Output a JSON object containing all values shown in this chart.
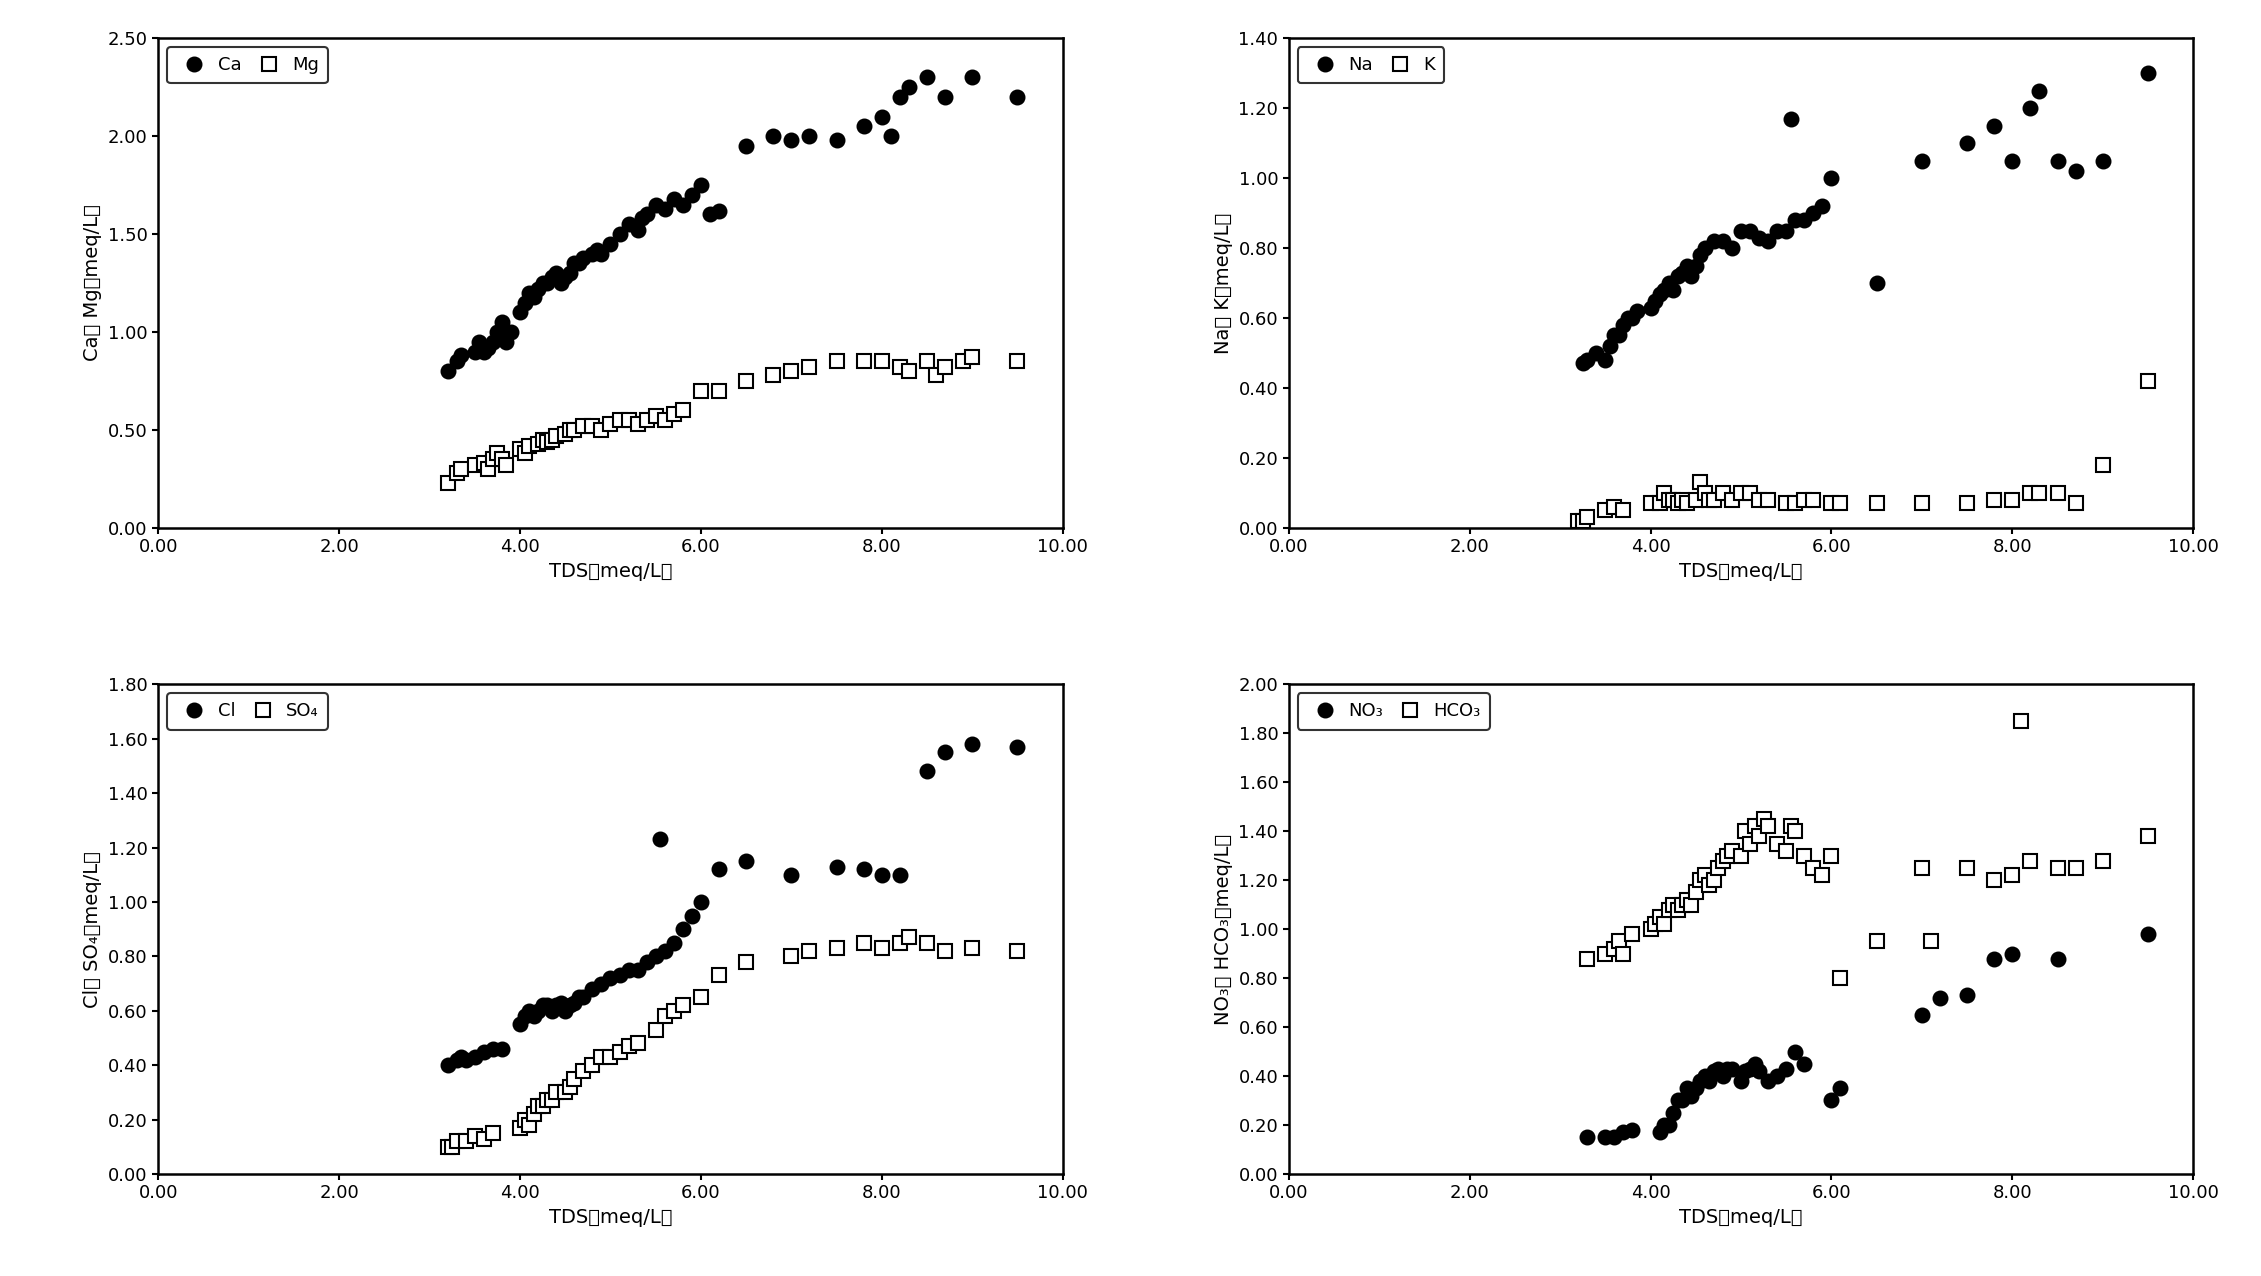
{
  "ca_tds": [
    3.2,
    3.3,
    3.35,
    3.5,
    3.55,
    3.6,
    3.65,
    3.7,
    3.75,
    3.8,
    3.85,
    3.9,
    4.0,
    4.05,
    4.1,
    4.15,
    4.2,
    4.25,
    4.3,
    4.35,
    4.4,
    4.45,
    4.5,
    4.55,
    4.6,
    4.65,
    4.7,
    4.8,
    4.85,
    4.9,
    5.0,
    5.1,
    5.2,
    5.3,
    5.35,
    5.4,
    5.5,
    5.6,
    5.7,
    5.8,
    5.9,
    6.0,
    6.1,
    6.2,
    6.5,
    6.8,
    7.0,
    7.2,
    7.5,
    7.8,
    8.0,
    8.1,
    8.2,
    8.3,
    8.5,
    8.7,
    9.0,
    9.5
  ],
  "ca_val": [
    0.8,
    0.85,
    0.88,
    0.9,
    0.95,
    0.9,
    0.92,
    0.95,
    1.0,
    1.05,
    0.95,
    1.0,
    1.1,
    1.15,
    1.2,
    1.18,
    1.22,
    1.25,
    1.25,
    1.28,
    1.3,
    1.25,
    1.28,
    1.3,
    1.35,
    1.35,
    1.38,
    1.4,
    1.42,
    1.4,
    1.45,
    1.5,
    1.55,
    1.52,
    1.58,
    1.6,
    1.65,
    1.63,
    1.68,
    1.65,
    1.7,
    1.75,
    1.6,
    1.62,
    1.95,
    2.0,
    1.98,
    2.0,
    1.98,
    2.05,
    2.1,
    2.0,
    2.2,
    2.25,
    2.3,
    2.2,
    2.3,
    2.2
  ],
  "mg_tds": [
    3.2,
    3.3,
    3.35,
    3.5,
    3.6,
    3.65,
    3.7,
    3.75,
    3.8,
    3.85,
    4.0,
    4.05,
    4.1,
    4.2,
    4.25,
    4.3,
    4.35,
    4.4,
    4.5,
    4.55,
    4.6,
    4.7,
    4.8,
    4.9,
    5.0,
    5.1,
    5.2,
    5.3,
    5.4,
    5.5,
    5.6,
    5.7,
    5.8,
    6.0,
    6.2,
    6.5,
    6.8,
    7.0,
    7.2,
    7.5,
    7.8,
    8.0,
    8.2,
    8.3,
    8.5,
    8.6,
    8.7,
    8.9,
    9.0,
    9.5
  ],
  "mg_val": [
    0.23,
    0.28,
    0.3,
    0.32,
    0.33,
    0.3,
    0.35,
    0.38,
    0.35,
    0.32,
    0.4,
    0.38,
    0.42,
    0.43,
    0.45,
    0.44,
    0.45,
    0.47,
    0.48,
    0.5,
    0.5,
    0.52,
    0.52,
    0.5,
    0.53,
    0.55,
    0.55,
    0.53,
    0.55,
    0.57,
    0.55,
    0.58,
    0.6,
    0.7,
    0.7,
    0.75,
    0.78,
    0.8,
    0.82,
    0.85,
    0.85,
    0.85,
    0.82,
    0.8,
    0.85,
    0.78,
    0.82,
    0.85,
    0.87,
    0.85
  ],
  "na_tds": [
    3.25,
    3.3,
    3.4,
    3.5,
    3.55,
    3.6,
    3.65,
    3.7,
    3.75,
    3.8,
    3.85,
    4.0,
    4.05,
    4.1,
    4.15,
    4.2,
    4.25,
    4.3,
    4.35,
    4.4,
    4.45,
    4.5,
    4.55,
    4.6,
    4.7,
    4.8,
    4.9,
    5.0,
    5.1,
    5.2,
    5.3,
    5.4,
    5.5,
    5.55,
    5.6,
    5.7,
    5.8,
    5.9,
    6.0,
    6.5,
    7.0,
    7.5,
    7.8,
    8.0,
    8.2,
    8.3,
    8.5,
    8.7,
    9.0,
    9.5
  ],
  "na_val": [
    0.47,
    0.48,
    0.5,
    0.48,
    0.52,
    0.55,
    0.55,
    0.58,
    0.6,
    0.6,
    0.62,
    0.63,
    0.65,
    0.67,
    0.68,
    0.7,
    0.68,
    0.72,
    0.73,
    0.75,
    0.72,
    0.75,
    0.78,
    0.8,
    0.82,
    0.82,
    0.8,
    0.85,
    0.85,
    0.83,
    0.82,
    0.85,
    0.85,
    1.17,
    0.88,
    0.88,
    0.9,
    0.92,
    1.0,
    0.7,
    1.05,
    1.1,
    1.15,
    1.05,
    1.2,
    1.25,
    1.05,
    1.02,
    1.05,
    1.3
  ],
  "k_tds": [
    3.2,
    3.25,
    3.3,
    3.5,
    3.6,
    3.7,
    4.0,
    4.1,
    4.15,
    4.2,
    4.25,
    4.3,
    4.35,
    4.4,
    4.5,
    4.55,
    4.6,
    4.65,
    4.7,
    4.8,
    4.9,
    5.0,
    5.1,
    5.2,
    5.3,
    5.5,
    5.6,
    5.7,
    5.8,
    6.0,
    6.1,
    6.5,
    7.0,
    7.5,
    7.8,
    8.0,
    8.2,
    8.3,
    8.5,
    8.7,
    9.0,
    9.5
  ],
  "k_val": [
    0.02,
    0.02,
    0.03,
    0.05,
    0.06,
    0.05,
    0.07,
    0.07,
    0.1,
    0.08,
    0.08,
    0.07,
    0.08,
    0.07,
    0.08,
    0.13,
    0.1,
    0.08,
    0.08,
    0.1,
    0.08,
    0.1,
    0.1,
    0.08,
    0.08,
    0.07,
    0.07,
    0.08,
    0.08,
    0.07,
    0.07,
    0.07,
    0.07,
    0.07,
    0.08,
    0.08,
    0.1,
    0.1,
    0.1,
    0.07,
    0.18,
    0.42
  ],
  "cl_tds": [
    3.2,
    3.3,
    3.35,
    3.4,
    3.5,
    3.6,
    3.7,
    3.8,
    4.0,
    4.05,
    4.1,
    4.15,
    4.2,
    4.25,
    4.3,
    4.35,
    4.4,
    4.45,
    4.5,
    4.55,
    4.6,
    4.65,
    4.7,
    4.8,
    4.9,
    5.0,
    5.1,
    5.2,
    5.3,
    5.4,
    5.5,
    5.55,
    5.6,
    5.7,
    5.8,
    5.9,
    6.0,
    6.2,
    6.5,
    7.0,
    7.5,
    7.8,
    8.0,
    8.2,
    8.5,
    8.7,
    9.0,
    9.5
  ],
  "cl_val": [
    0.4,
    0.42,
    0.43,
    0.42,
    0.43,
    0.45,
    0.46,
    0.46,
    0.55,
    0.58,
    0.6,
    0.58,
    0.6,
    0.62,
    0.62,
    0.6,
    0.62,
    0.63,
    0.6,
    0.62,
    0.63,
    0.65,
    0.65,
    0.68,
    0.7,
    0.72,
    0.73,
    0.75,
    0.75,
    0.78,
    0.8,
    1.23,
    0.82,
    0.85,
    0.9,
    0.95,
    1.0,
    1.12,
    1.15,
    1.1,
    1.13,
    1.12,
    1.1,
    1.1,
    1.48,
    1.55,
    1.58,
    1.57
  ],
  "so4_tds": [
    3.2,
    3.25,
    3.3,
    3.4,
    3.5,
    3.6,
    3.7,
    4.0,
    4.05,
    4.1,
    4.15,
    4.2,
    4.25,
    4.3,
    4.35,
    4.4,
    4.5,
    4.55,
    4.6,
    4.7,
    4.8,
    4.9,
    5.0,
    5.1,
    5.2,
    5.3,
    5.5,
    5.6,
    5.7,
    5.8,
    6.0,
    6.2,
    6.5,
    7.0,
    7.2,
    7.5,
    7.8,
    8.0,
    8.2,
    8.3,
    8.5,
    8.7,
    9.0,
    9.5
  ],
  "so4_val": [
    0.1,
    0.1,
    0.12,
    0.12,
    0.14,
    0.13,
    0.15,
    0.17,
    0.2,
    0.18,
    0.22,
    0.25,
    0.25,
    0.27,
    0.27,
    0.3,
    0.3,
    0.32,
    0.35,
    0.38,
    0.4,
    0.43,
    0.43,
    0.45,
    0.47,
    0.48,
    0.53,
    0.58,
    0.6,
    0.62,
    0.65,
    0.73,
    0.78,
    0.8,
    0.82,
    0.83,
    0.85,
    0.83,
    0.85,
    0.87,
    0.85,
    0.82,
    0.83,
    0.82
  ],
  "no3_tds": [
    3.3,
    3.5,
    3.6,
    3.7,
    3.8,
    4.1,
    4.15,
    4.2,
    4.25,
    4.3,
    4.35,
    4.4,
    4.45,
    4.5,
    4.55,
    4.6,
    4.65,
    4.7,
    4.75,
    4.8,
    4.85,
    4.9,
    5.0,
    5.05,
    5.1,
    5.15,
    5.2,
    5.3,
    5.4,
    5.5,
    5.6,
    5.7,
    6.0,
    6.1,
    7.0,
    7.2,
    7.5,
    7.8,
    8.0,
    8.5,
    9.5
  ],
  "no3_val": [
    0.15,
    0.15,
    0.15,
    0.17,
    0.18,
    0.17,
    0.2,
    0.2,
    0.25,
    0.3,
    0.3,
    0.35,
    0.32,
    0.35,
    0.38,
    0.4,
    0.38,
    0.42,
    0.43,
    0.4,
    0.43,
    0.43,
    0.38,
    0.42,
    0.43,
    0.45,
    0.42,
    0.38,
    0.4,
    0.43,
    0.5,
    0.45,
    0.3,
    0.35,
    0.65,
    0.72,
    0.73,
    0.88,
    0.9,
    0.88,
    0.98
  ],
  "hco3_tds": [
    3.3,
    3.5,
    3.6,
    3.65,
    3.7,
    3.8,
    4.0,
    4.05,
    4.1,
    4.15,
    4.2,
    4.25,
    4.3,
    4.35,
    4.4,
    4.45,
    4.5,
    4.55,
    4.6,
    4.65,
    4.7,
    4.75,
    4.8,
    4.85,
    4.9,
    5.0,
    5.05,
    5.1,
    5.15,
    5.2,
    5.25,
    5.3,
    5.4,
    5.5,
    5.55,
    5.6,
    5.7,
    5.8,
    5.9,
    6.0,
    6.1,
    6.5,
    7.0,
    7.1,
    7.5,
    7.8,
    8.0,
    8.1,
    8.2,
    8.5,
    8.7,
    9.0,
    9.5
  ],
  "hco3_val": [
    0.88,
    0.9,
    0.92,
    0.95,
    0.9,
    0.98,
    1.0,
    1.02,
    1.05,
    1.02,
    1.08,
    1.1,
    1.08,
    1.1,
    1.12,
    1.1,
    1.15,
    1.2,
    1.22,
    1.18,
    1.2,
    1.25,
    1.28,
    1.3,
    1.32,
    1.3,
    1.4,
    1.35,
    1.42,
    1.38,
    1.45,
    1.42,
    1.35,
    1.32,
    1.42,
    1.4,
    1.3,
    1.25,
    1.22,
    1.3,
    0.8,
    0.95,
    1.25,
    0.95,
    1.25,
    1.2,
    1.22,
    1.85,
    1.28,
    1.25,
    1.25,
    1.28,
    1.38
  ],
  "xlim": [
    0,
    10
  ],
  "xticks": [
    0.0,
    2.0,
    4.0,
    6.0,
    8.0,
    10.0
  ],
  "xlabel": "TDS（meq/L）",
  "ylabel_ca": "Ca， Mg（meq/L）",
  "ylabel_na": "Na， K（meq/L）",
  "ylabel_cl": "Cl， SO₄（meq/L）",
  "ylabel_no3": "NO₃， HCO₃（meq/L）",
  "ylim_ca": [
    0,
    2.5
  ],
  "ylim_na": [
    0,
    1.4
  ],
  "ylim_cl": [
    0,
    1.8
  ],
  "ylim_no3": [
    0,
    2.0
  ],
  "yticks_ca": [
    0.0,
    0.5,
    1.0,
    1.5,
    2.0,
    2.5
  ],
  "yticks_na": [
    0.0,
    0.2,
    0.4,
    0.6,
    0.8,
    1.0,
    1.2,
    1.4
  ],
  "yticks_cl": [
    0.0,
    0.2,
    0.4,
    0.6,
    0.8,
    1.0,
    1.2,
    1.4,
    1.6,
    1.8
  ],
  "yticks_no3": [
    0.0,
    0.2,
    0.4,
    0.6,
    0.8,
    1.0,
    1.2,
    1.4,
    1.6,
    1.8,
    2.0
  ],
  "marker_filled": "o",
  "marker_open": "s",
  "markersize": 10,
  "edgecolor": "#000000",
  "facecolor_filled": "#000000",
  "facecolor_open": "#ffffff",
  "spine_linewidth": 1.8,
  "tick_labelsize": 13,
  "axis_labelsize": 14
}
